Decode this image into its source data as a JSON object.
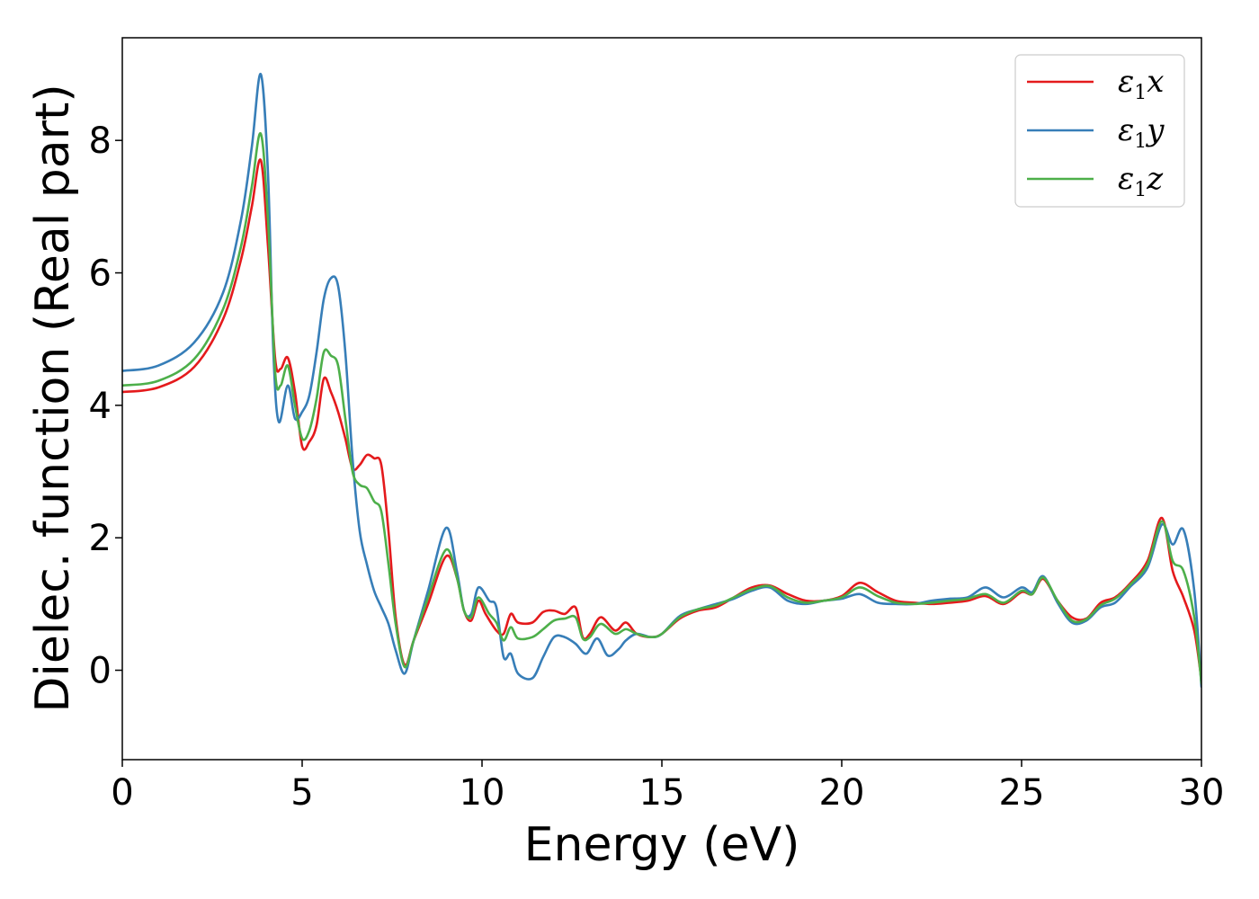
{
  "chart_data": {
    "type": "line",
    "title": "",
    "xlabel": "Energy (eV)",
    "ylabel": "Dielec. function (Real part)",
    "xlim": [
      0,
      30
    ],
    "ylim": [
      -1.35,
      9.55
    ],
    "xticks": [
      0,
      5,
      10,
      15,
      20,
      25,
      30
    ],
    "yticks": [
      0,
      2,
      4,
      6,
      8
    ],
    "xtick_labels": [
      "0",
      "5",
      "10",
      "15",
      "20",
      "25",
      "30"
    ],
    "ytick_labels": [
      "0",
      "2",
      "4",
      "6",
      "8"
    ],
    "grid": false,
    "legend_position": "top-right",
    "series": [
      {
        "name": "ε1x",
        "legend_symbol": "ε",
        "legend_subscript": "1",
        "legend_suffix": "x",
        "color": "#e41a1c",
        "points": [
          [
            0,
            4.2
          ],
          [
            1,
            4.27
          ],
          [
            2,
            4.58
          ],
          [
            2.8,
            5.3
          ],
          [
            3.3,
            6.2
          ],
          [
            3.6,
            7.0
          ],
          [
            3.85,
            7.7
          ],
          [
            4.05,
            6.4
          ],
          [
            4.25,
            4.7
          ],
          [
            4.4,
            4.55
          ],
          [
            4.6,
            4.72
          ],
          [
            4.8,
            4.2
          ],
          [
            5.0,
            3.38
          ],
          [
            5.2,
            3.45
          ],
          [
            5.4,
            3.7
          ],
          [
            5.6,
            4.4
          ],
          [
            5.8,
            4.2
          ],
          [
            6.0,
            3.9
          ],
          [
            6.2,
            3.5
          ],
          [
            6.4,
            3.05
          ],
          [
            6.6,
            3.1
          ],
          [
            6.8,
            3.25
          ],
          [
            7.0,
            3.2
          ],
          [
            7.2,
            3.1
          ],
          [
            7.4,
            2.1
          ],
          [
            7.6,
            0.8
          ],
          [
            7.85,
            0.08
          ],
          [
            8.1,
            0.45
          ],
          [
            8.5,
            1.0
          ],
          [
            9.0,
            1.72
          ],
          [
            9.3,
            1.4
          ],
          [
            9.5,
            0.9
          ],
          [
            9.7,
            0.75
          ],
          [
            9.9,
            1.05
          ],
          [
            10.1,
            0.85
          ],
          [
            10.4,
            0.6
          ],
          [
            10.6,
            0.55
          ],
          [
            10.8,
            0.85
          ],
          [
            11.0,
            0.72
          ],
          [
            11.4,
            0.72
          ],
          [
            11.7,
            0.88
          ],
          [
            12.0,
            0.9
          ],
          [
            12.3,
            0.85
          ],
          [
            12.6,
            0.95
          ],
          [
            12.8,
            0.5
          ],
          [
            13.0,
            0.55
          ],
          [
            13.3,
            0.8
          ],
          [
            13.7,
            0.6
          ],
          [
            14.0,
            0.72
          ],
          [
            14.3,
            0.55
          ],
          [
            14.7,
            0.5
          ],
          [
            15.0,
            0.55
          ],
          [
            15.5,
            0.78
          ],
          [
            16.0,
            0.9
          ],
          [
            16.5,
            0.95
          ],
          [
            17.0,
            1.1
          ],
          [
            17.5,
            1.25
          ],
          [
            18.0,
            1.28
          ],
          [
            18.5,
            1.15
          ],
          [
            19.0,
            1.05
          ],
          [
            19.5,
            1.05
          ],
          [
            20.0,
            1.12
          ],
          [
            20.5,
            1.32
          ],
          [
            21.0,
            1.18
          ],
          [
            21.5,
            1.05
          ],
          [
            22.0,
            1.02
          ],
          [
            22.5,
            1.0
          ],
          [
            23.0,
            1.02
          ],
          [
            23.5,
            1.05
          ],
          [
            24.0,
            1.12
          ],
          [
            24.5,
            1.0
          ],
          [
            25.0,
            1.18
          ],
          [
            25.3,
            1.15
          ],
          [
            25.6,
            1.38
          ],
          [
            26.0,
            1.05
          ],
          [
            26.4,
            0.8
          ],
          [
            26.8,
            0.78
          ],
          [
            27.2,
            1.02
          ],
          [
            27.6,
            1.1
          ],
          [
            28.0,
            1.3
          ],
          [
            28.5,
            1.65
          ],
          [
            28.9,
            2.3
          ],
          [
            29.2,
            1.5
          ],
          [
            29.5,
            1.1
          ],
          [
            29.8,
            0.6
          ],
          [
            30.0,
            -0.15
          ]
        ]
      },
      {
        "name": "ε1y",
        "legend_symbol": "ε",
        "legend_subscript": "1",
        "legend_suffix": "y",
        "color": "#377eb8",
        "points": [
          [
            0,
            4.52
          ],
          [
            1,
            4.6
          ],
          [
            2,
            4.95
          ],
          [
            2.8,
            5.7
          ],
          [
            3.3,
            6.8
          ],
          [
            3.6,
            7.9
          ],
          [
            3.85,
            9.0
          ],
          [
            4.05,
            7.5
          ],
          [
            4.2,
            4.8
          ],
          [
            4.35,
            3.75
          ],
          [
            4.6,
            4.3
          ],
          [
            4.8,
            3.8
          ],
          [
            5.0,
            3.9
          ],
          [
            5.2,
            4.15
          ],
          [
            5.4,
            4.8
          ],
          [
            5.6,
            5.6
          ],
          [
            5.8,
            5.92
          ],
          [
            6.0,
            5.8
          ],
          [
            6.2,
            4.8
          ],
          [
            6.4,
            3.2
          ],
          [
            6.6,
            2.1
          ],
          [
            6.8,
            1.6
          ],
          [
            7.0,
            1.2
          ],
          [
            7.2,
            0.95
          ],
          [
            7.4,
            0.7
          ],
          [
            7.6,
            0.3
          ],
          [
            7.85,
            -0.05
          ],
          [
            8.1,
            0.45
          ],
          [
            8.5,
            1.2
          ],
          [
            9.0,
            2.15
          ],
          [
            9.3,
            1.5
          ],
          [
            9.5,
            0.9
          ],
          [
            9.7,
            0.85
          ],
          [
            9.9,
            1.25
          ],
          [
            10.2,
            1.05
          ],
          [
            10.4,
            0.95
          ],
          [
            10.6,
            0.2
          ],
          [
            10.8,
            0.25
          ],
          [
            11.0,
            -0.05
          ],
          [
            11.4,
            -0.12
          ],
          [
            11.7,
            0.2
          ],
          [
            12.0,
            0.5
          ],
          [
            12.3,
            0.5
          ],
          [
            12.6,
            0.4
          ],
          [
            12.9,
            0.25
          ],
          [
            13.2,
            0.48
          ],
          [
            13.5,
            0.22
          ],
          [
            13.8,
            0.32
          ],
          [
            14.0,
            0.45
          ],
          [
            14.3,
            0.55
          ],
          [
            14.7,
            0.5
          ],
          [
            15.0,
            0.55
          ],
          [
            15.5,
            0.82
          ],
          [
            16.0,
            0.92
          ],
          [
            16.5,
            1.0
          ],
          [
            17.0,
            1.08
          ],
          [
            17.5,
            1.2
          ],
          [
            18.0,
            1.25
          ],
          [
            18.5,
            1.05
          ],
          [
            19.0,
            1.0
          ],
          [
            19.5,
            1.05
          ],
          [
            20.0,
            1.08
          ],
          [
            20.5,
            1.15
          ],
          [
            21.0,
            1.02
          ],
          [
            21.5,
            1.0
          ],
          [
            22.0,
            1.0
          ],
          [
            22.5,
            1.05
          ],
          [
            23.0,
            1.08
          ],
          [
            23.5,
            1.1
          ],
          [
            24.0,
            1.25
          ],
          [
            24.5,
            1.1
          ],
          [
            25.0,
            1.25
          ],
          [
            25.3,
            1.18
          ],
          [
            25.6,
            1.42
          ],
          [
            26.0,
            1.02
          ],
          [
            26.4,
            0.72
          ],
          [
            26.8,
            0.75
          ],
          [
            27.2,
            0.95
          ],
          [
            27.6,
            1.02
          ],
          [
            28.0,
            1.25
          ],
          [
            28.5,
            1.55
          ],
          [
            28.9,
            2.2
          ],
          [
            29.2,
            1.9
          ],
          [
            29.5,
            2.12
          ],
          [
            29.8,
            1.2
          ],
          [
            30.0,
            -0.25
          ]
        ]
      },
      {
        "name": "ε1z",
        "legend_symbol": "ε",
        "legend_subscript": "1",
        "legend_suffix": "z",
        "color": "#4daf4a",
        "points": [
          [
            0,
            4.3
          ],
          [
            1,
            4.37
          ],
          [
            2,
            4.7
          ],
          [
            2.8,
            5.45
          ],
          [
            3.3,
            6.4
          ],
          [
            3.6,
            7.3
          ],
          [
            3.85,
            8.1
          ],
          [
            4.05,
            6.8
          ],
          [
            4.25,
            4.5
          ],
          [
            4.4,
            4.3
          ],
          [
            4.6,
            4.6
          ],
          [
            4.8,
            4.0
          ],
          [
            5.0,
            3.5
          ],
          [
            5.2,
            3.62
          ],
          [
            5.4,
            4.1
          ],
          [
            5.6,
            4.8
          ],
          [
            5.8,
            4.75
          ],
          [
            6.0,
            4.6
          ],
          [
            6.2,
            3.8
          ],
          [
            6.4,
            3.0
          ],
          [
            6.6,
            2.8
          ],
          [
            6.8,
            2.75
          ],
          [
            7.0,
            2.55
          ],
          [
            7.2,
            2.4
          ],
          [
            7.4,
            1.6
          ],
          [
            7.6,
            0.7
          ],
          [
            7.85,
            0.05
          ],
          [
            8.1,
            0.45
          ],
          [
            8.5,
            1.1
          ],
          [
            9.0,
            1.82
          ],
          [
            9.3,
            1.4
          ],
          [
            9.5,
            0.9
          ],
          [
            9.7,
            0.8
          ],
          [
            9.9,
            1.1
          ],
          [
            10.2,
            0.85
          ],
          [
            10.4,
            0.72
          ],
          [
            10.6,
            0.45
          ],
          [
            10.8,
            0.65
          ],
          [
            11.0,
            0.48
          ],
          [
            11.4,
            0.5
          ],
          [
            11.7,
            0.62
          ],
          [
            12.0,
            0.75
          ],
          [
            12.3,
            0.78
          ],
          [
            12.6,
            0.8
          ],
          [
            12.8,
            0.48
          ],
          [
            13.0,
            0.5
          ],
          [
            13.3,
            0.7
          ],
          [
            13.7,
            0.55
          ],
          [
            14.0,
            0.62
          ],
          [
            14.3,
            0.55
          ],
          [
            14.7,
            0.5
          ],
          [
            15.0,
            0.55
          ],
          [
            15.5,
            0.8
          ],
          [
            16.0,
            0.92
          ],
          [
            16.5,
            0.98
          ],
          [
            17.0,
            1.1
          ],
          [
            17.5,
            1.22
          ],
          [
            18.0,
            1.27
          ],
          [
            18.5,
            1.1
          ],
          [
            19.0,
            1.02
          ],
          [
            19.5,
            1.05
          ],
          [
            20.0,
            1.1
          ],
          [
            20.5,
            1.25
          ],
          [
            21.0,
            1.12
          ],
          [
            21.5,
            1.02
          ],
          [
            22.0,
            1.0
          ],
          [
            22.5,
            1.02
          ],
          [
            23.0,
            1.05
          ],
          [
            23.5,
            1.08
          ],
          [
            24.0,
            1.15
          ],
          [
            24.5,
            1.02
          ],
          [
            25.0,
            1.2
          ],
          [
            25.3,
            1.15
          ],
          [
            25.6,
            1.4
          ],
          [
            26.0,
            1.05
          ],
          [
            26.4,
            0.75
          ],
          [
            26.8,
            0.77
          ],
          [
            27.2,
            0.98
          ],
          [
            27.6,
            1.08
          ],
          [
            28.0,
            1.28
          ],
          [
            28.5,
            1.6
          ],
          [
            28.9,
            2.25
          ],
          [
            29.2,
            1.65
          ],
          [
            29.5,
            1.5
          ],
          [
            29.8,
            0.8
          ],
          [
            30.0,
            -0.2
          ]
        ]
      }
    ]
  }
}
